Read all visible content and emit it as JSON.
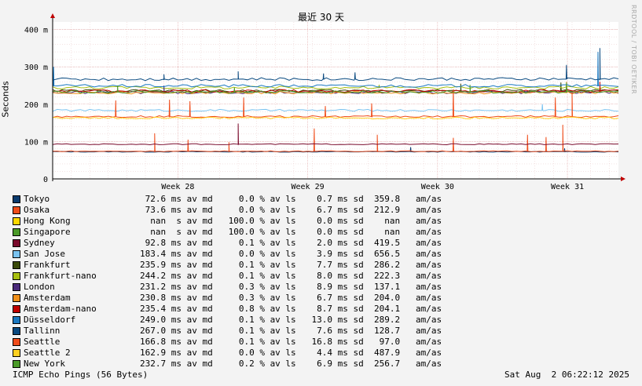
{
  "chart_data": {
    "type": "line",
    "title": "最近 30 天",
    "ylabel": "Seconds",
    "watermark": "RRDTOOL / TOBI OETIKER",
    "ylim": [
      0,
      420
    ],
    "yticks": [
      {
        "value": 0,
        "label": "0"
      },
      {
        "value": 100,
        "label": "100 m"
      },
      {
        "value": 200,
        "label": "200 m"
      },
      {
        "value": 300,
        "label": "300 m"
      },
      {
        "value": 400,
        "label": "400 m"
      }
    ],
    "xrange_days": [
      0,
      30.5
    ],
    "xticks": [
      {
        "day": 6.75,
        "label": "Week 28"
      },
      {
        "day": 13.75,
        "label": "Week 29"
      },
      {
        "day": 20.75,
        "label": "Week 30"
      },
      {
        "day": 27.75,
        "label": "Week 31"
      }
    ],
    "grid": true,
    "series": [
      {
        "name": "Tokyo",
        "color": "#0b3b6e",
        "level": 72.6,
        "spikes": [
          [
            19.3,
            85
          ],
          [
            27.6,
            82
          ]
        ]
      },
      {
        "name": "Osaka",
        "color": "#f04c1a",
        "level": 74,
        "spikes": [
          [
            5.5,
            122
          ],
          [
            7.3,
            105
          ],
          [
            9.5,
            98
          ],
          [
            14.1,
            135
          ],
          [
            17.5,
            118
          ],
          [
            21.6,
            110
          ],
          [
            25.6,
            118
          ],
          [
            26.6,
            112
          ],
          [
            27.5,
            145
          ]
        ]
      },
      {
        "name": "Hong Kong",
        "color": "#ffd800",
        "level": null
      },
      {
        "name": "Singapore",
        "color": "#4a9a28",
        "level": null
      },
      {
        "name": "Sydney",
        "color": "#7a0a2c",
        "level": 92.8,
        "spikes": [
          [
            10.0,
            148
          ]
        ]
      },
      {
        "name": "San Jose",
        "color": "#7ac3f0",
        "level": 183.4,
        "spikes": [
          [
            26.4,
            200
          ]
        ]
      },
      {
        "name": "Frankfurt",
        "color": "#3a4a0a",
        "level": 235.9,
        "spikes": [
          [
            22.0,
            255
          ],
          [
            27.4,
            258
          ]
        ]
      },
      {
        "name": "Frankfurt-nano",
        "color": "#a8c010",
        "level": 244.2,
        "spikes": [
          [
            17.6,
            252
          ]
        ]
      },
      {
        "name": "London",
        "color": "#4a2a7a",
        "level": 231.2,
        "spikes": [
          [
            6.0,
            250
          ]
        ]
      },
      {
        "name": "Amsterdam",
        "color": "#f0901a",
        "level": 230.8,
        "spikes": [
          [
            27.7,
            260
          ]
        ]
      },
      {
        "name": "Amsterdam-nano",
        "color": "#c00000",
        "level": 235.4,
        "spikes": [
          [
            29.5,
            260
          ]
        ]
      },
      {
        "name": "Düsseldorf",
        "color": "#1a78c0",
        "level": 249.0,
        "spikes": [
          [
            0.05,
            300
          ],
          [
            29.4,
            340
          ]
        ]
      },
      {
        "name": "Tallinn",
        "color": "#0a4a80",
        "level": 267.0,
        "spikes": [
          [
            6.0,
            280
          ],
          [
            10.0,
            288
          ],
          [
            14.6,
            282
          ],
          [
            16.3,
            285
          ],
          [
            27.7,
            305
          ],
          [
            29.5,
            350
          ]
        ]
      },
      {
        "name": "Seattle",
        "color": "#f04c1a",
        "level": 166.8,
        "spikes": [
          [
            3.4,
            210
          ],
          [
            6.3,
            212
          ],
          [
            7.4,
            208
          ],
          [
            10.3,
            218
          ],
          [
            14.7,
            195
          ],
          [
            17.2,
            202
          ],
          [
            21.6,
            240
          ],
          [
            27.1,
            218
          ],
          [
            28.0,
            232
          ]
        ]
      },
      {
        "name": "Seattle 2",
        "color": "#ffd020",
        "level": 162.9
      },
      {
        "name": "New York",
        "color": "#4a9a28",
        "level": 232.7,
        "spikes": [
          [
            3.5,
            250
          ],
          [
            9.8,
            245
          ],
          [
            22.5,
            252
          ],
          [
            27.7,
            258
          ]
        ]
      }
    ],
    "legend": [
      {
        "name": "Tokyo",
        "stats": " 72.6 ms av md     0.0 % av ls    0.7 ms sd  359.8   am/as"
      },
      {
        "name": "Osaka",
        "stats": " 73.6 ms av md     0.0 % av ls    6.7 ms sd  212.9   am/as"
      },
      {
        "name": "Hong Kong",
        "stats": "  nan  s av md   100.0 % av ls    0.0 ms sd    nan   am/as"
      },
      {
        "name": "Singapore",
        "stats": "  nan  s av md   100.0 % av ls    0.0 ms sd    nan   am/as"
      },
      {
        "name": "Sydney",
        "stats": " 92.8 ms av md     0.1 % av ls    2.0 ms sd  419.5   am/as"
      },
      {
        "name": "San Jose",
        "stats": "183.4 ms av md     0.0 % av ls    3.9 ms sd  656.5   am/as"
      },
      {
        "name": "Frankfurt",
        "stats": "235.9 ms av md     0.1 % av ls    7.7 ms sd  286.2   am/as"
      },
      {
        "name": "Frankfurt-nano",
        "stats": "244.2 ms av md     0.1 % av ls    8.0 ms sd  222.3   am/as"
      },
      {
        "name": "London",
        "stats": "231.2 ms av md     0.3 % av ls    8.9 ms sd  137.1   am/as"
      },
      {
        "name": "Amsterdam",
        "stats": "230.8 ms av md     0.3 % av ls    6.7 ms sd  204.0   am/as"
      },
      {
        "name": "Amsterdam-nano",
        "stats": "235.4 ms av md     0.8 % av ls    8.7 ms sd  204.1   am/as"
      },
      {
        "name": "Düsseldorf",
        "stats": "249.0 ms av md     0.1 % av ls   13.0 ms sd  289.2   am/as"
      },
      {
        "name": "Tallinn",
        "stats": "267.0 ms av md     0.1 % av ls    7.6 ms sd  128.7   am/as"
      },
      {
        "name": "Seattle",
        "stats": "166.8 ms av md     0.1 % av ls   16.8 ms sd   97.0   am/as"
      },
      {
        "name": "Seattle 2",
        "stats": "162.9 ms av md     0.0 % av ls    4.4 ms sd  487.9   am/as"
      },
      {
        "name": "New York",
        "stats": "232.7 ms av md     0.2 % av ls    6.9 ms sd  256.7   am/as"
      }
    ],
    "footer_left": "ICMP Echo Pings (56 Bytes)",
    "footer_right": "Sat Aug  2 06:22:12 2025"
  }
}
